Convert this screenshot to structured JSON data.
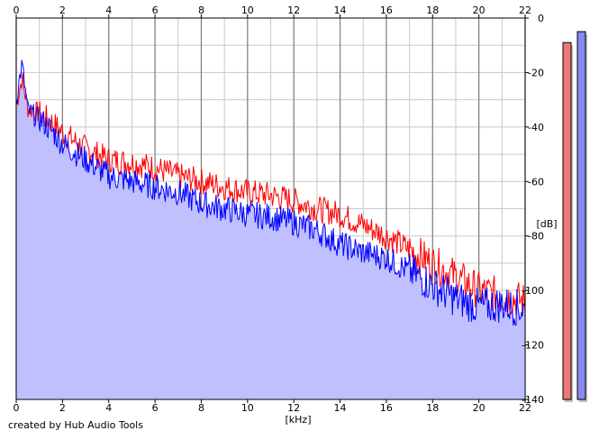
{
  "credit": "created by Hub Audio Tools",
  "colors": {
    "fill": "#c0c0ff",
    "channel_left": "#ff0000",
    "channel_right": "#0000ff",
    "grid_minor": "#c8c8c8",
    "grid_major": "#808080",
    "meter_left": "#ee7777",
    "meter_right": "#8888ee"
  },
  "chart_data": {
    "type": "line",
    "xlabel": "[kHz]",
    "ylabel": "[dB]",
    "xlim": [
      0,
      22
    ],
    "ylim": [
      -140,
      0
    ],
    "x_ticks": [
      "0",
      "2",
      "4",
      "6",
      "8",
      "10",
      "12",
      "14",
      "16",
      "18",
      "20",
      "22"
    ],
    "y_ticks": [
      "0",
      "-20",
      "-40",
      "-60",
      "-80",
      "-100",
      "-120",
      "-140"
    ],
    "grid": true,
    "x": [
      0,
      0.25,
      0.5,
      1,
      1.5,
      2,
      3,
      4,
      5,
      6,
      7,
      8,
      9,
      10,
      11,
      12,
      13,
      14,
      15,
      16,
      17,
      18,
      19,
      20,
      21,
      22
    ],
    "series": [
      {
        "values": [
          -32,
          -22,
          -33,
          -35,
          -38,
          -42,
          -48,
          -52,
          -53,
          -55,
          -58,
          -60,
          -62,
          -64,
          -65,
          -67,
          -70,
          -72,
          -76,
          -80,
          -85,
          -90,
          -95,
          -100,
          -102,
          -104
        ]
      },
      {
        "values": [
          -30,
          -17,
          -34,
          -37,
          -41,
          -46,
          -52,
          -58,
          -60,
          -62,
          -64,
          -68,
          -70,
          -72,
          -73,
          -75,
          -78,
          -83,
          -86,
          -88,
          -93,
          -98,
          -103,
          -106,
          -105,
          -107
        ]
      }
    ],
    "meters": [
      {
        "level_db": -9
      },
      {
        "level_db": -5
      }
    ]
  }
}
